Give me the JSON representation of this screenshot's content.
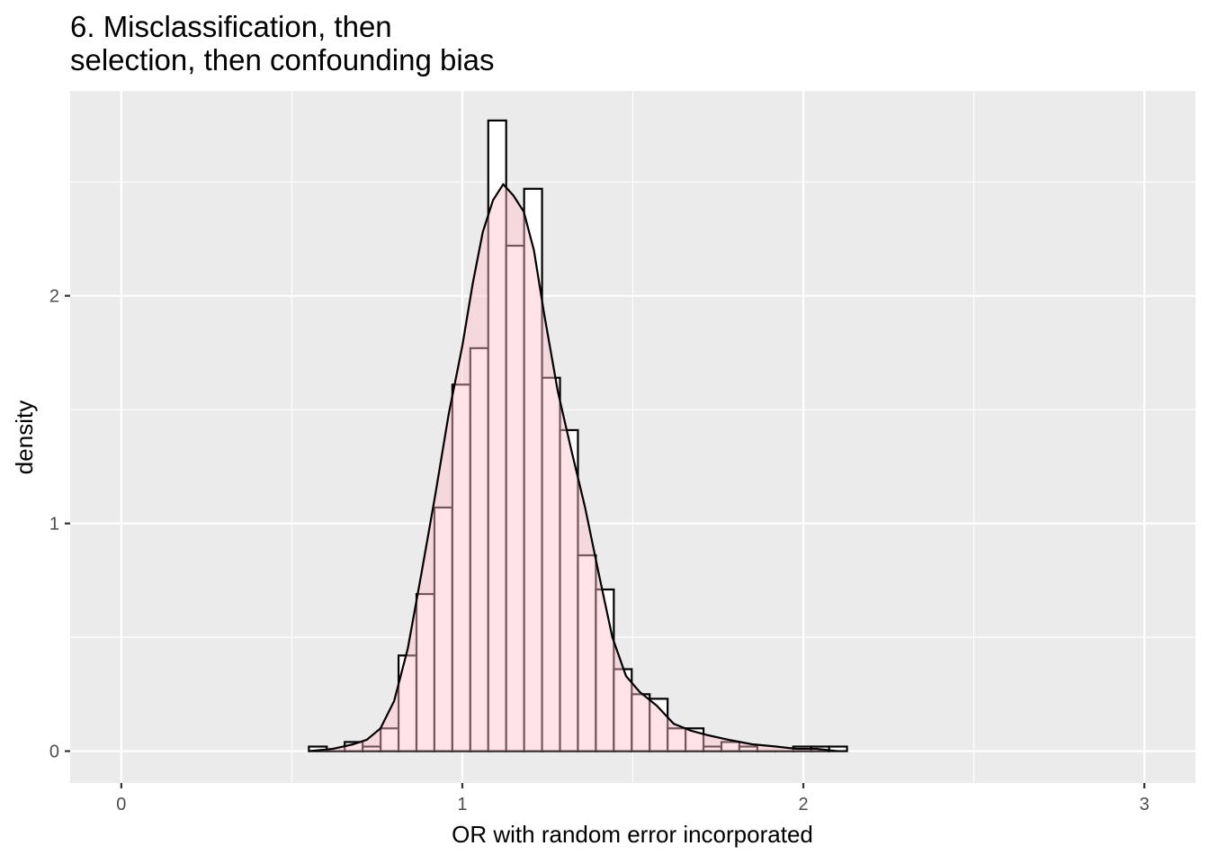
{
  "chart_data": {
    "type": "bar",
    "title": [
      "6. Misclassification, then",
      "selection, then confounding bias"
    ],
    "xlabel": "OR with random error incorporated",
    "ylabel": "density",
    "xlim": [
      -0.15,
      3.15
    ],
    "ylim": [
      -0.14,
      2.9
    ],
    "x_ticks": [
      0,
      1,
      2,
      3
    ],
    "x_tick_labels": [
      "0",
      "1",
      "2",
      "3"
    ],
    "y_ticks": [
      0,
      1,
      2
    ],
    "y_tick_labels": [
      "0",
      "1",
      "2"
    ],
    "grid": true,
    "bin_width": 0.0526,
    "bin_start": 0.55,
    "histogram_density": [
      0.02,
      0.0,
      0.04,
      0.02,
      0.1,
      0.42,
      0.69,
      1.07,
      1.61,
      1.77,
      2.77,
      2.22,
      2.47,
      1.64,
      1.41,
      0.86,
      0.71,
      0.36,
      0.25,
      0.23,
      0.1,
      0.1,
      0.02,
      0.04,
      0.02,
      0.0,
      0.0,
      0.02,
      0.02,
      0.02
    ],
    "density_curve": {
      "x": [
        0.55,
        0.62,
        0.68,
        0.72,
        0.76,
        0.8,
        0.84,
        0.88,
        0.92,
        0.96,
        1.0,
        1.03,
        1.06,
        1.09,
        1.12,
        1.15,
        1.18,
        1.21,
        1.24,
        1.28,
        1.32,
        1.36,
        1.4,
        1.44,
        1.48,
        1.52,
        1.57,
        1.62,
        1.67,
        1.72,
        1.78,
        1.85,
        1.92,
        1.98,
        2.04,
        2.1
      ],
      "y": [
        0.0,
        0.01,
        0.03,
        0.05,
        0.1,
        0.22,
        0.45,
        0.78,
        1.12,
        1.48,
        1.78,
        2.05,
        2.28,
        2.42,
        2.49,
        2.44,
        2.37,
        2.2,
        1.92,
        1.58,
        1.32,
        1.07,
        0.78,
        0.5,
        0.33,
        0.26,
        0.2,
        0.12,
        0.09,
        0.07,
        0.05,
        0.03,
        0.02,
        0.01,
        0.01,
        0.0
      ]
    },
    "colors": {
      "panel_background": "#ebebeb",
      "grid_line": "#ffffff",
      "bar_fill": "#ffffff",
      "bar_stroke": "#000000",
      "density_fill": "#ffc0cb",
      "density_fill_opacity": 0.45,
      "density_line": "#000000"
    }
  }
}
